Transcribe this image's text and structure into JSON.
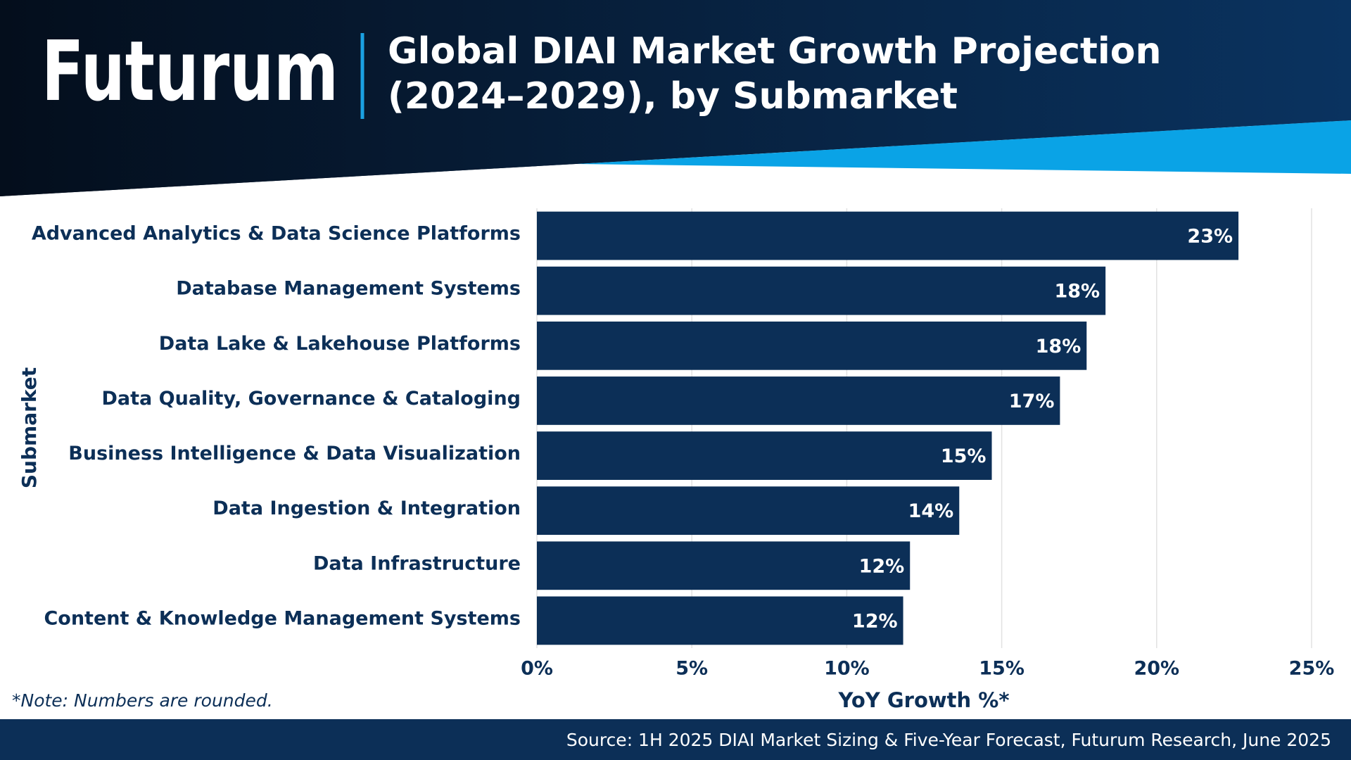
{
  "brand": "Futurum",
  "chart_data": {
    "type": "bar",
    "orientation": "horizontal",
    "title": [
      "Global DIAI Market Growth Projection",
      "(2024–2029), by Submarket"
    ],
    "categories": [
      "Advanced Analytics & Data Science Platforms",
      "Database Management Systems",
      "Data Lake & Lakehouse Platforms",
      "Data Quality, Governance & Cataloging",
      "Business Intelligence & Data Visualization",
      "Data Ingestion & Integration",
      "Data Infrastructure",
      "Content & Knowledge Management Systems"
    ],
    "values": [
      22.64,
      18.35,
      17.74,
      16.88,
      14.68,
      13.63,
      12.04,
      11.82
    ],
    "value_labels": [
      "23%",
      "18%",
      "18%",
      "17%",
      "15%",
      "14%",
      "12%",
      "12%"
    ],
    "color": "#0c2f57",
    "xlim": [
      0,
      25
    ],
    "xticks": [
      {
        "value": 0,
        "label": "0%"
      },
      {
        "value": 5,
        "label": "5%"
      },
      {
        "value": 10,
        "label": "10%"
      },
      {
        "value": 15,
        "label": "15%"
      },
      {
        "value": 20,
        "label": "20%"
      },
      {
        "value": 25,
        "label": "25%"
      }
    ],
    "x_label": "YoY Growth %*",
    "y_label": "Submarket",
    "grid": true
  },
  "note": "*Note: Numbers are rounded.",
  "source": "Source: 1H 2025 DIAI Market Sizing & Five-Year Forecast, Futurum Research, June 2025"
}
